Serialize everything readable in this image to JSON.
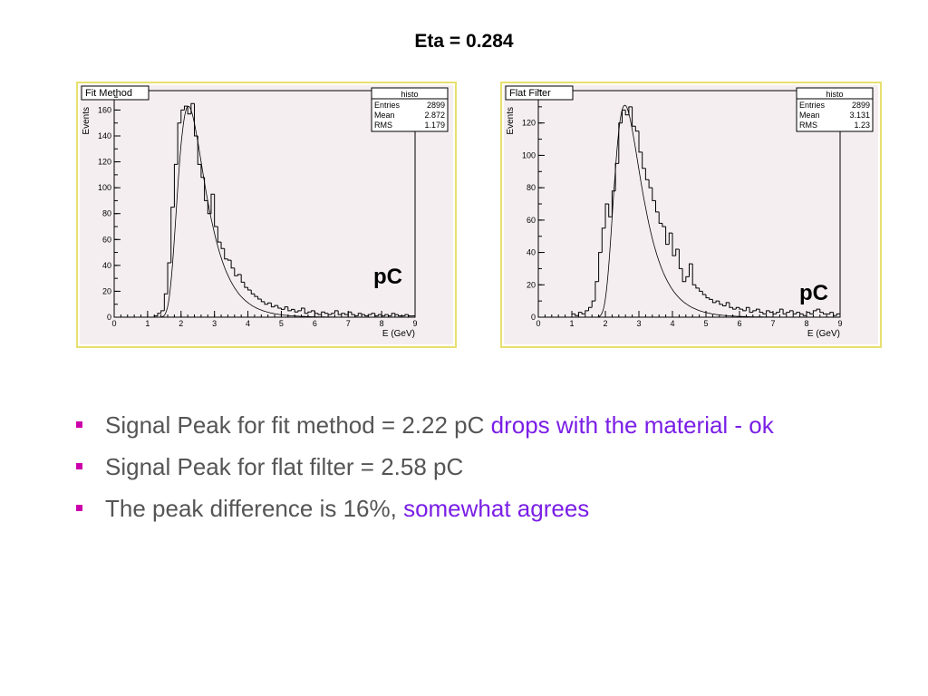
{
  "slide": {
    "title": "Eta = 0.284"
  },
  "colors": {
    "bullet": "#cc00aa",
    "accent": "#7a1ee6",
    "panel_border": "#e8e070",
    "plot_bg": "#f5eef0"
  },
  "bullets": [
    {
      "text": "Signal Peak for fit method = 2.22 pC ",
      "accent": "drops with the material - ok"
    },
    {
      "text": "Signal Peak for flat filter = 2.58 pC",
      "accent": ""
    },
    {
      "text": "The peak difference is 16%, ",
      "accent": "somewhat agrees"
    }
  ],
  "unit_label": "pC",
  "chart_data": [
    {
      "type": "bar",
      "panel_title": "Fit Method",
      "xlabel": "E (GeV)",
      "ylabel": "Events",
      "xlim": [
        0,
        9
      ],
      "ylim": [
        0,
        175
      ],
      "xticks": [
        0,
        1,
        2,
        3,
        4,
        5,
        6,
        7,
        8,
        9
      ],
      "yticks": [
        0,
        20,
        40,
        60,
        80,
        100,
        120,
        140,
        160
      ],
      "stats": {
        "name": "histo",
        "rows": [
          [
            "Entries",
            "2899"
          ],
          [
            "Mean",
            "2.872"
          ],
          [
            "RMS",
            "1.179"
          ]
        ]
      },
      "fit": {
        "peak_x": 2.22,
        "peak_y": 163
      },
      "bin_width": 0.1,
      "x": [
        1.0,
        1.1,
        1.2,
        1.3,
        1.4,
        1.5,
        1.6,
        1.7,
        1.8,
        1.9,
        2.0,
        2.1,
        2.2,
        2.3,
        2.4,
        2.5,
        2.6,
        2.7,
        2.8,
        2.9,
        3.0,
        3.1,
        3.2,
        3.3,
        3.4,
        3.5,
        3.6,
        3.7,
        3.8,
        3.9,
        4.0,
        4.1,
        4.2,
        4.3,
        4.4,
        4.5,
        4.6,
        4.7,
        4.8,
        4.9,
        5.0,
        5.1,
        5.2,
        5.3,
        5.4,
        5.5,
        5.6,
        5.7,
        5.8,
        5.9,
        6.0,
        6.1,
        6.2,
        6.3,
        6.4,
        6.5,
        6.6,
        6.7,
        6.8,
        6.9,
        7.0,
        7.1,
        7.2,
        7.3,
        7.4,
        7.5,
        7.6,
        7.7,
        7.8,
        7.9,
        8.0,
        8.1,
        8.2,
        8.3,
        8.4,
        8.5,
        8.6,
        8.7,
        8.8,
        8.9
      ],
      "values": [
        0,
        0,
        1,
        3,
        5,
        18,
        42,
        85,
        118,
        150,
        160,
        163,
        157,
        165,
        140,
        118,
        108,
        90,
        80,
        95,
        70,
        58,
        53,
        45,
        44,
        38,
        32,
        33,
        27,
        23,
        21,
        18,
        16,
        14,
        12,
        10,
        11,
        8,
        9,
        7,
        6,
        8,
        5,
        6,
        4,
        5,
        7,
        3,
        4,
        5,
        3,
        2,
        4,
        3,
        2,
        3,
        5,
        2,
        3,
        2,
        4,
        2,
        1,
        3,
        2,
        1,
        2,
        3,
        1,
        2,
        1,
        2,
        1,
        3,
        2,
        1,
        1,
        2,
        1,
        1
      ]
    },
    {
      "type": "bar",
      "panel_title": "Flat Filter",
      "xlabel": "E (GeV)",
      "ylabel": "Events",
      "xlim": [
        0,
        9
      ],
      "ylim": [
        0,
        140
      ],
      "xticks": [
        0,
        1,
        2,
        3,
        4,
        5,
        6,
        7,
        8,
        9
      ],
      "yticks": [
        0,
        20,
        40,
        60,
        80,
        100,
        120
      ],
      "stats": {
        "name": "histo",
        "rows": [
          [
            "Entries",
            "2899"
          ],
          [
            "Mean",
            "3.131"
          ],
          [
            "RMS",
            "1.23"
          ]
        ]
      },
      "fit": {
        "peak_x": 2.58,
        "peak_y": 131
      },
      "bin_width": 0.1,
      "x": [
        1.0,
        1.1,
        1.2,
        1.3,
        1.4,
        1.5,
        1.6,
        1.7,
        1.8,
        1.9,
        2.0,
        2.1,
        2.2,
        2.3,
        2.4,
        2.5,
        2.6,
        2.7,
        2.8,
        2.9,
        3.0,
        3.1,
        3.2,
        3.3,
        3.4,
        3.5,
        3.6,
        3.7,
        3.8,
        3.9,
        4.0,
        4.1,
        4.2,
        4.3,
        4.4,
        4.5,
        4.6,
        4.7,
        4.8,
        4.9,
        5.0,
        5.1,
        5.2,
        5.3,
        5.4,
        5.5,
        5.6,
        5.7,
        5.8,
        5.9,
        6.0,
        6.1,
        6.2,
        6.3,
        6.4,
        6.5,
        6.6,
        6.7,
        6.8,
        6.9,
        7.0,
        7.1,
        7.2,
        7.3,
        7.4,
        7.5,
        7.6,
        7.7,
        7.8,
        7.9,
        8.0,
        8.1,
        8.2,
        8.3,
        8.4,
        8.5,
        8.6,
        8.7,
        8.8,
        8.9
      ],
      "values": [
        2,
        1,
        3,
        2,
        4,
        6,
        10,
        22,
        40,
        55,
        70,
        62,
        78,
        95,
        120,
        128,
        125,
        130,
        118,
        115,
        102,
        92,
        85,
        80,
        72,
        65,
        58,
        56,
        45,
        52,
        38,
        42,
        30,
        22,
        25,
        33,
        20,
        18,
        16,
        14,
        12,
        11,
        9,
        10,
        8,
        7,
        9,
        6,
        5,
        6,
        5,
        4,
        6,
        3,
        4,
        5,
        3,
        2,
        4,
        3,
        2,
        3,
        5,
        2,
        3,
        4,
        2,
        3,
        2,
        1,
        3,
        2,
        4,
        5,
        3,
        2,
        2,
        3,
        1,
        2
      ]
    }
  ]
}
